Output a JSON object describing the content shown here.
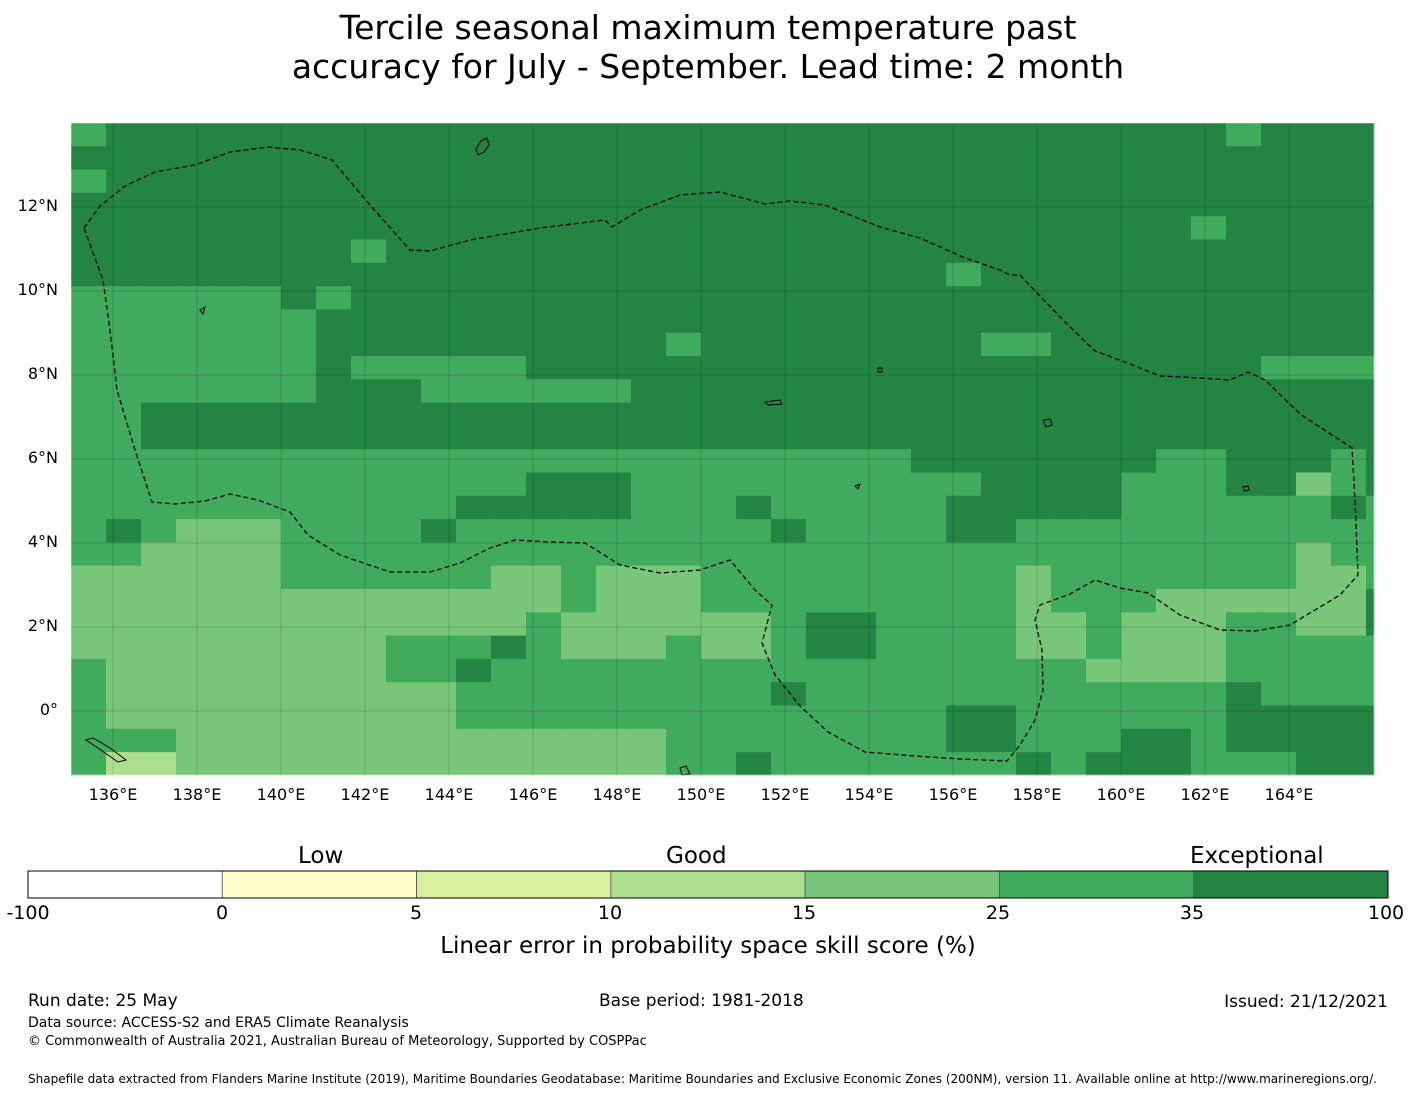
{
  "title": {
    "line1": "Tercile seasonal maximum temperature past",
    "line2": "accuracy for July - September. Lead time: 2 month"
  },
  "map": {
    "lat_labels": [
      "12°N",
      "10°N",
      "8°N",
      "6°N",
      "4°N",
      "2°N",
      "0°"
    ],
    "lon_labels": [
      "136°E",
      "138°E",
      "140°E",
      "142°E",
      "144°E",
      "146°E",
      "148°E",
      "150°E",
      "152°E",
      "154°E",
      "156°E",
      "158°E",
      "160°E",
      "162°E",
      "164°E"
    ],
    "boundary_style": "dashed",
    "base_class": 5
  },
  "legend": {
    "categories": [
      "Low",
      "Good",
      "Exceptional"
    ],
    "ticks": [
      "-100",
      "0",
      "5",
      "10",
      "15",
      "25",
      "35",
      "100"
    ],
    "colors": [
      "#ffffff",
      "#ffffcc",
      "#d9f0a3",
      "#addd8e",
      "#78c679",
      "#41ab5d",
      "#238443"
    ],
    "label": "Linear error in probability space skill score (%)"
  },
  "footer": {
    "run_date": "Run date: 25 May",
    "base_period": "Base period: 1981-2018",
    "issued": "Issued: 21/12/2021",
    "data_source": "Data source: ACCESS-S2 and ERA5 Climate Reanalysis",
    "copyright": "© Commonwealth of Australia 2021, Australian Bureau of Meteorology, Supported by COSPPac",
    "shapefile": "Shapefile data extracted from Flanders Marine Institute (2019), Maritime Boundaries Geodatabase: Maritime Boundaries and Exclusive Economic Zones (200NM), version 11. Available online at http://www.marineregions.org/."
  }
}
